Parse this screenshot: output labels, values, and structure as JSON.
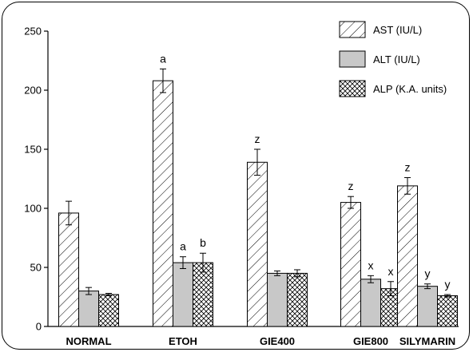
{
  "chart_data": {
    "type": "bar",
    "categories": [
      "NORMAL",
      "ETOH",
      "GIE400",
      "GIE800",
      "SILYMARIN"
    ],
    "series": [
      {
        "name": "AST (IU/L)",
        "values": [
          96,
          208,
          139,
          105,
          119
        ],
        "errors": [
          10,
          10,
          11,
          5,
          7
        ],
        "letters": [
          "",
          "a",
          "z",
          "z",
          "z"
        ],
        "pattern": "hatch"
      },
      {
        "name": "ALT (IU/L)",
        "values": [
          30,
          54,
          45,
          40,
          34
        ],
        "errors": [
          3,
          5,
          2,
          3,
          2
        ],
        "letters": [
          "",
          "a",
          "",
          "x",
          "y"
        ],
        "pattern": "gray"
      },
      {
        "name": "ALP (K.A. units)",
        "values": [
          27,
          54,
          45,
          32,
          26
        ],
        "errors": [
          1,
          8,
          3,
          6,
          1
        ],
        "letters": [
          "",
          "b",
          "",
          "x",
          "y"
        ],
        "pattern": "crosshatch"
      }
    ],
    "yticks": [
      "0",
      "50",
      "100",
      "150",
      "200",
      "250"
    ],
    "ylim": [
      0,
      250
    ],
    "legend_position": "top-right",
    "grid": false,
    "colors": {
      "gray_fill": "#c8c8c8",
      "stroke": "#000000"
    }
  }
}
